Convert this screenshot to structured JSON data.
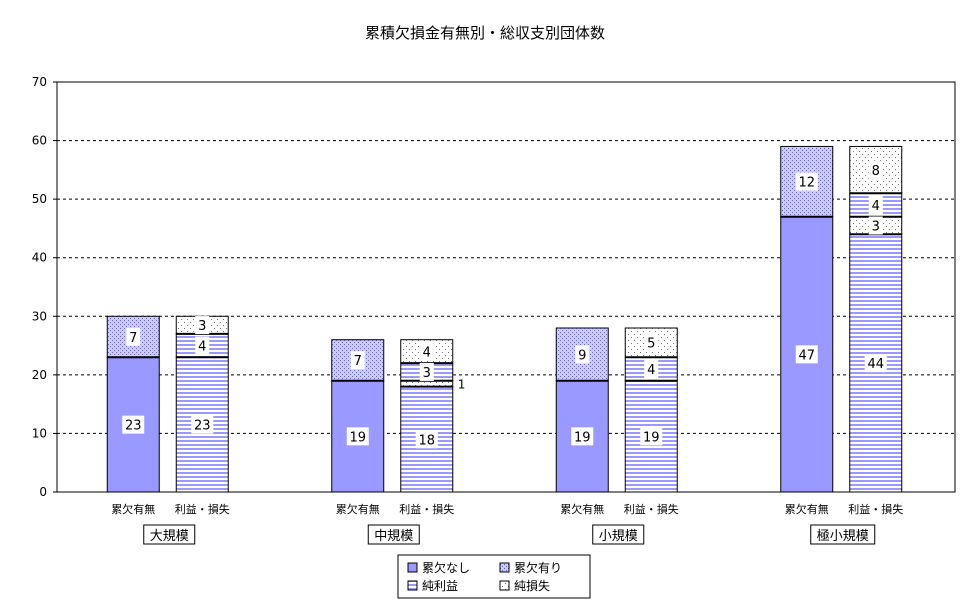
{
  "chart_data": {
    "type": "bar",
    "stacked": true,
    "title": "累積欠損金有無別・総収支別団体数",
    "ylim": [
      0,
      70
    ],
    "yticks": [
      0,
      10,
      20,
      30,
      40,
      50,
      60,
      70
    ],
    "grid": true,
    "legend_position": "bottom-center",
    "groups": [
      {
        "name": "大規模",
        "bars": [
          {
            "label": "累欠有無",
            "segments": [
              {
                "series": "累欠なし",
                "value": 23,
                "label": "23"
              },
              {
                "series": "累欠有り",
                "value": 7,
                "label": "7"
              }
            ]
          },
          {
            "label": "利益・損失",
            "segments": [
              {
                "series": "純利益",
                "value": 23,
                "label": "23"
              },
              {
                "series": "純利益",
                "value": 4,
                "label": "4"
              },
              {
                "series": "純損失",
                "value": 3,
                "label": "3"
              }
            ]
          }
        ]
      },
      {
        "name": "中規模",
        "bars": [
          {
            "label": "累欠有無",
            "segments": [
              {
                "series": "累欠なし",
                "value": 19,
                "label": "19"
              },
              {
                "series": "累欠有り",
                "value": 7,
                "label": "7"
              }
            ]
          },
          {
            "label": "利益・損失",
            "segments": [
              {
                "series": "純利益",
                "value": 18,
                "label": "18"
              },
              {
                "series": "純損失",
                "value": 1,
                "label": "1"
              },
              {
                "series": "純利益",
                "value": 3,
                "label": "3"
              },
              {
                "series": "純損失",
                "value": 4,
                "label": "4"
              }
            ]
          }
        ]
      },
      {
        "name": "小規模",
        "bars": [
          {
            "label": "累欠有無",
            "segments": [
              {
                "series": "累欠なし",
                "value": 19,
                "label": "19"
              },
              {
                "series": "累欠有り",
                "value": 9,
                "label": "9"
              }
            ]
          },
          {
            "label": "利益・損失",
            "segments": [
              {
                "series": "純利益",
                "value": 19,
                "label": "19"
              },
              {
                "series": "純利益",
                "value": 4,
                "label": "4"
              },
              {
                "series": "純損失",
                "value": 5,
                "label": "5"
              }
            ]
          }
        ]
      },
      {
        "name": "極小規模",
        "bars": [
          {
            "label": "累欠有無",
            "segments": [
              {
                "series": "累欠なし",
                "value": 47,
                "label": "47"
              },
              {
                "series": "累欠有り",
                "value": 12,
                "label": "12"
              }
            ]
          },
          {
            "label": "利益・損失",
            "segments": [
              {
                "series": "純利益",
                "value": 44,
                "label": "44"
              },
              {
                "series": "純損失",
                "value": 3,
                "label": "3"
              },
              {
                "series": "純利益",
                "value": 4,
                "label": "4"
              },
              {
                "series": "純損失",
                "value": 8,
                "label": "8"
              }
            ]
          }
        ]
      }
    ],
    "legend": [
      {
        "series": "累欠なし",
        "label": "累欠なし",
        "fill": "solid",
        "color": "#9999ff"
      },
      {
        "series": "累欠有り",
        "label": "累欠有り",
        "fill": "dots",
        "color": "#9999ff"
      },
      {
        "series": "純利益",
        "label": "純利益",
        "fill": "hstripes",
        "color": "#9999ff"
      },
      {
        "series": "純損失",
        "label": "純損失",
        "fill": "sparse-dots",
        "color": "#ffffff"
      }
    ]
  }
}
